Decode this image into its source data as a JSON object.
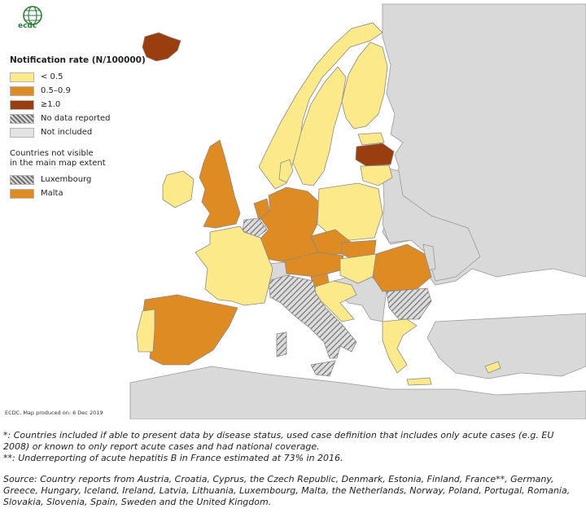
{
  "logo": {
    "text": "ecdc",
    "icon": "globe-icon"
  },
  "legend": {
    "title": "Notification rate (N/100000)",
    "items": [
      {
        "label": "< 0.5",
        "color": "#fcea8a"
      },
      {
        "label": "0.5–0.9",
        "color": "#dd8b22"
      },
      {
        "label": "≥1.0",
        "color": "#9a3e10"
      },
      {
        "label": "No data reported",
        "color": "hatched"
      },
      {
        "label": "Not included",
        "color": "#e3e3e3"
      }
    ],
    "subtitle_line1": "Countries not visible",
    "subtitle_line2": "in the main map extent",
    "small_countries": [
      {
        "label": "Luxembourg",
        "color": "hatched"
      },
      {
        "label": "Malta",
        "color": "#dd8b22"
      }
    ]
  },
  "map": {
    "sea_color": "#ffffff",
    "background_land_color": "#d9d9d9",
    "rate_classes": {
      "Iceland": "≥1.0",
      "Latvia": "≥1.0",
      "United Kingdom": "0.5–0.9",
      "Germany": "0.5–0.9",
      "Netherlands": "0.5–0.9",
      "Czech Republic": "0.5–0.9",
      "Austria": "0.5–0.9",
      "Slovakia": "0.5–0.9",
      "Slovenia": "0.5–0.9",
      "Spain": "0.5–0.9",
      "Romania": "0.5–0.9",
      "Malta": "0.5–0.9",
      "Ireland": "< 0.5",
      "France": "< 0.5",
      "Portugal": "< 0.5",
      "Norway": "< 0.5",
      "Sweden": "< 0.5",
      "Finland": "< 0.5",
      "Estonia": "< 0.5",
      "Lithuania": "< 0.5",
      "Poland": "< 0.5",
      "Hungary": "< 0.5",
      "Croatia": "< 0.5",
      "Greece": "< 0.5",
      "Cyprus": "< 0.5",
      "Denmark": "< 0.5",
      "Italy": "No data reported",
      "Bulgaria": "No data reported",
      "Belgium": "No data reported",
      "Luxembourg": "No data reported"
    }
  },
  "credit": "ECDC. Map produced on: 6 Dec 2019",
  "notes": {
    "line1": "*: Countries included if able to present data by disease status, used case definition that includes only acute cases (e.g. EU 2008) or known to only report acute cases and had national coverage.",
    "line2": "**: Underreporting of acute hepatitis B in France estimated at 73% in 2016.",
    "source": "Source: Country reports from Austria, Croatia, Cyprus, the Czech Republic, Denmark, Estonia, Finland, France**, Germany, Greece, Hungary, Iceland, Ireland, Latvia, Lithuania, Luxembourg, Malta, the Netherlands, Norway, Poland, Portugal, Romania, Slovakia, Slovenia, Spain, Sweden and the United Kingdom."
  }
}
